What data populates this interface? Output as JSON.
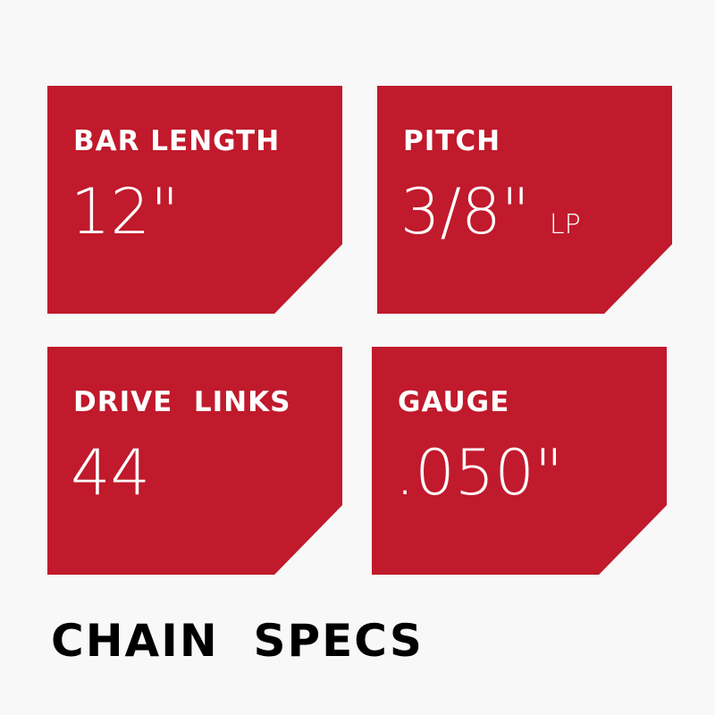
{
  "accent_color": "#c01a2c",
  "cards": [
    {
      "label": "BAR LENGTH",
      "value": "12\"",
      "unit": ""
    },
    {
      "label": "PITCH",
      "value": "3/8\"",
      "unit": "LP"
    },
    {
      "label": "DRIVE  LINKS",
      "value": "44",
      "unit": ""
    },
    {
      "label": "GAUGE",
      "value": ".050\"",
      "unit": ""
    }
  ],
  "title": "CHAIN  SPECS"
}
